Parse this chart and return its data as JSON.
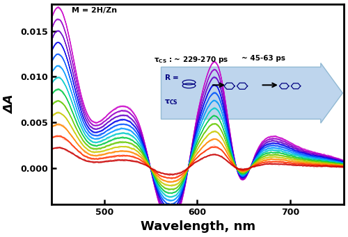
{
  "xlabel": "Wavelength, nm",
  "ylabel": "ΔA",
  "xlim": [
    443,
    758
  ],
  "ylim": [
    -0.004,
    0.018
  ],
  "yticks": [
    0.0,
    0.005,
    0.01,
    0.015
  ],
  "ytick_labels": [
    "0.000",
    "0.005",
    "0.010",
    "0.015"
  ],
  "xticks": [
    500,
    600,
    700
  ],
  "curve_colors_ordered": [
    "#cc00cc",
    "#9900cc",
    "#6600cc",
    "#0000ee",
    "#0055ff",
    "#0099ff",
    "#00cccc",
    "#00cc44",
    "#66cc00",
    "#cccc00",
    "#ff8800",
    "#ff3300",
    "#cc0000"
  ],
  "annotation_m": "M = 2H/Zn",
  "annotation_tcs1": "τCS : ~ 229-270 ps",
  "annotation_tcs2": "~ 45-63 ps"
}
